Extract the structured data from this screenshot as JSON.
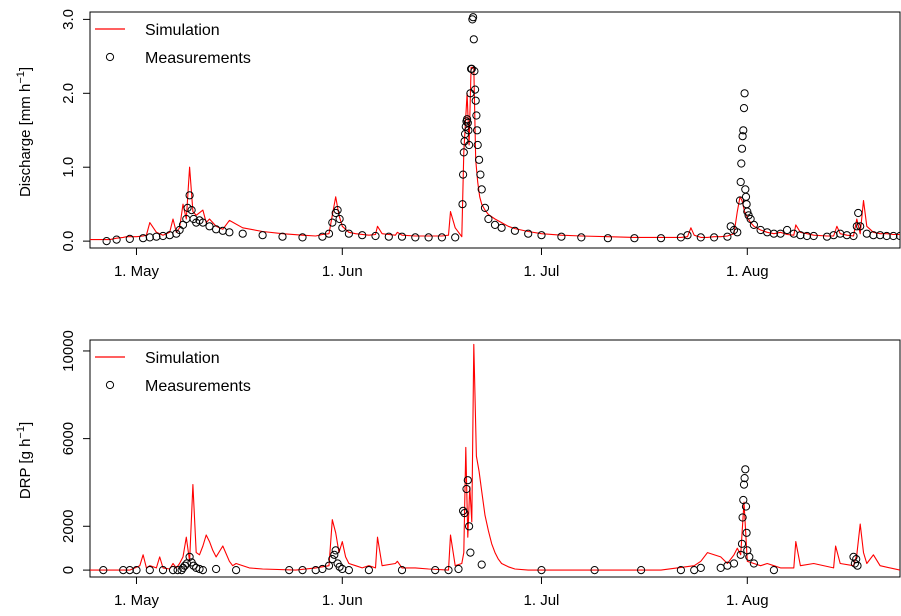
{
  "chart_data": [
    {
      "type": "line",
      "panel": "top",
      "ylabel": "Discharge [mm h",
      "ylabel_sup": "−1",
      "ylabel_tail": "]",
      "ylim": [
        0,
        3.0
      ],
      "xlim": [
        24.0,
        146.0
      ],
      "x_ticks": [
        {
          "x": 31,
          "label": "1. May"
        },
        {
          "x": 62,
          "label": "1. Jun"
        },
        {
          "x": 92,
          "label": "1. Jul"
        },
        {
          "x": 123,
          "label": "1. Aug"
        }
      ],
      "y_ticks": [
        {
          "y": 0.0,
          "label": "0.0"
        },
        {
          "y": 1.0,
          "label": "1.0"
        },
        {
          "y": 2.0,
          "label": "2.0"
        },
        {
          "y": 3.0,
          "label": "3.0"
        }
      ],
      "legend": {
        "position": "top-left",
        "entries": [
          "Simulation",
          "Measurements"
        ]
      },
      "series": [
        {
          "name": "Simulation",
          "kind": "line",
          "color": "#ff0000",
          "x": [
            24.0,
            27.0,
            28.0,
            29.0,
            29.5,
            30.0,
            31.0,
            32.0,
            32.5,
            33.0,
            34.0,
            35.0,
            36.0,
            36.5,
            37.0,
            37.5,
            38.0,
            38.5,
            39.0,
            39.5,
            40.0,
            41.0,
            41.5,
            42.0,
            43.0,
            44.0,
            45.0,
            47.0,
            50.0,
            53.0,
            56.0,
            58.0,
            59.0,
            60.0,
            60.5,
            61.0,
            61.5,
            62.0,
            63.0,
            64.0,
            66.0,
            67.0,
            67.3,
            68.0,
            69.0,
            70.0,
            70.3,
            71.0,
            73.0,
            75.0,
            77.0,
            78.0,
            78.3,
            79.0,
            80.0,
            80.3,
            80.8,
            81.1,
            81.4,
            81.8,
            82.1,
            82.4,
            82.7,
            83.0,
            83.5,
            84.0,
            85.0,
            86.0,
            87.0,
            88.0,
            90.0,
            92.0,
            95.0,
            98.0,
            102.0,
            106.0,
            110.0,
            113.0,
            114.0,
            114.5,
            115.0,
            116.0,
            117.0,
            118.0,
            119.0,
            120.0,
            121.0,
            121.5,
            121.9,
            122.2,
            122.6,
            123.0,
            123.5,
            124.0,
            125.0,
            126.0,
            127.0,
            128.0,
            129.0,
            130.0,
            130.3,
            131.0,
            132.0,
            133.0,
            135.0,
            136.0,
            136.5,
            137.0,
            138.0,
            139.0,
            139.5,
            140.0,
            140.5,
            141.0,
            142.0,
            143.0,
            144.0,
            145.0,
            146.0
          ],
          "y": [
            0.02,
            0.02,
            0.04,
            0.05,
            0.06,
            0.06,
            0.06,
            0.07,
            0.08,
            0.25,
            0.12,
            0.08,
            0.12,
            0.3,
            0.12,
            0.18,
            0.5,
            0.3,
            1.0,
            0.4,
            0.35,
            0.42,
            0.25,
            0.3,
            0.2,
            0.16,
            0.28,
            0.18,
            0.13,
            0.1,
            0.08,
            0.07,
            0.09,
            0.1,
            0.35,
            0.6,
            0.35,
            0.2,
            0.12,
            0.1,
            0.08,
            0.09,
            0.2,
            0.1,
            0.09,
            0.08,
            0.12,
            0.08,
            0.07,
            0.07,
            0.07,
            0.08,
            0.4,
            0.18,
            0.06,
            1.2,
            2.0,
            1.3,
            2.35,
            2.35,
            1.1,
            0.8,
            0.6,
            0.5,
            0.42,
            0.36,
            0.3,
            0.25,
            0.2,
            0.17,
            0.13,
            0.1,
            0.08,
            0.07,
            0.06,
            0.05,
            0.05,
            0.05,
            0.06,
            0.18,
            0.08,
            0.05,
            0.05,
            0.06,
            0.06,
            0.07,
            0.1,
            0.4,
            0.6,
            0.55,
            0.4,
            0.32,
            0.25,
            0.2,
            0.15,
            0.12,
            0.1,
            0.12,
            0.09,
            0.08,
            0.22,
            0.12,
            0.1,
            0.08,
            0.07,
            0.07,
            0.2,
            0.1,
            0.08,
            0.07,
            0.3,
            0.1,
            0.55,
            0.2,
            0.12,
            0.1,
            0.1,
            0.09,
            0.09
          ]
        },
        {
          "name": "Measurements",
          "kind": "points",
          "color": "#000000",
          "x": [
            26.5,
            28.0,
            30.0,
            32.0,
            33.0,
            34.0,
            35.0,
            36.0,
            37.0,
            37.5,
            38.0,
            38.5,
            38.7,
            39.0,
            39.3,
            39.6,
            40.0,
            40.5,
            41.0,
            42.0,
            43.0,
            44.0,
            45.0,
            47.0,
            50.0,
            53.0,
            56.0,
            59.0,
            60.0,
            60.5,
            61.0,
            61.3,
            61.6,
            62.0,
            63.0,
            65.0,
            67.0,
            69.0,
            71.0,
            73.0,
            75.0,
            77.0,
            79.0,
            80.1,
            80.2,
            80.3,
            80.4,
            80.5,
            80.6,
            80.7,
            80.8,
            80.9,
            81.0,
            81.1,
            81.3,
            81.4,
            81.5,
            81.6,
            81.7,
            81.8,
            81.9,
            82.0,
            82.1,
            82.2,
            82.3,
            82.4,
            82.6,
            82.8,
            83.0,
            83.5,
            84.0,
            85.0,
            86.0,
            88.0,
            90.0,
            92.0,
            95.0,
            98.0,
            102.0,
            106.0,
            110.0,
            113.0,
            114.0,
            116.0,
            118.0,
            120.0,
            120.5,
            121.0,
            121.5,
            121.9,
            122.0,
            122.1,
            122.2,
            122.3,
            122.4,
            122.5,
            122.6,
            122.7,
            122.8,
            122.9,
            123.0,
            123.2,
            123.5,
            124.0,
            125.0,
            126.0,
            127.0,
            128.0,
            129.0,
            130.0,
            131.0,
            132.0,
            133.0,
            135.0,
            136.0,
            137.0,
            138.0,
            139.0,
            139.5,
            139.7,
            140.0,
            141.0,
            142.0,
            143.0,
            144.0,
            145.0,
            146.0
          ],
          "y": [
            0.0,
            0.02,
            0.03,
            0.04,
            0.05,
            0.06,
            0.07,
            0.08,
            0.1,
            0.15,
            0.22,
            0.3,
            0.45,
            0.62,
            0.42,
            0.3,
            0.25,
            0.28,
            0.25,
            0.2,
            0.16,
            0.14,
            0.12,
            0.1,
            0.08,
            0.06,
            0.05,
            0.06,
            0.1,
            0.25,
            0.38,
            0.42,
            0.3,
            0.18,
            0.1,
            0.08,
            0.07,
            0.06,
            0.06,
            0.05,
            0.05,
            0.05,
            0.05,
            0.5,
            0.9,
            1.2,
            1.35,
            1.45,
            1.55,
            1.62,
            1.65,
            1.6,
            1.5,
            1.3,
            2.0,
            2.33,
            2.33,
            3.0,
            3.03,
            2.73,
            2.3,
            2.05,
            1.9,
            1.7,
            1.5,
            1.3,
            1.1,
            0.9,
            0.7,
            0.45,
            0.3,
            0.22,
            0.18,
            0.14,
            0.1,
            0.08,
            0.06,
            0.05,
            0.04,
            0.04,
            0.04,
            0.05,
            0.08,
            0.05,
            0.05,
            0.06,
            0.2,
            0.15,
            0.12,
            0.55,
            0.8,
            1.05,
            1.25,
            1.42,
            1.5,
            1.8,
            2.0,
            0.7,
            0.6,
            0.5,
            0.4,
            0.35,
            0.3,
            0.22,
            0.15,
            0.12,
            0.1,
            0.1,
            0.15,
            0.1,
            0.08,
            0.07,
            0.07,
            0.06,
            0.08,
            0.1,
            0.08,
            0.07,
            0.2,
            0.38,
            0.2,
            0.1,
            0.08,
            0.08,
            0.07,
            0.07,
            0.07
          ]
        }
      ]
    },
    {
      "type": "line",
      "panel": "bottom",
      "ylabel": "DRP [g h",
      "ylabel_sup": "−1",
      "ylabel_tail": "]",
      "ylim": [
        0,
        10000
      ],
      "xlim": [
        24.0,
        146.0
      ],
      "x_ticks": [
        {
          "x": 31,
          "label": "1. May"
        },
        {
          "x": 62,
          "label": "1. Jun"
        },
        {
          "x": 92,
          "label": "1. Jul"
        },
        {
          "x": 123,
          "label": "1. Aug"
        }
      ],
      "y_ticks": [
        {
          "y": 0,
          "label": "0"
        },
        {
          "y": 2000,
          "label": "2000"
        },
        {
          "y": 6000,
          "label": "6000"
        },
        {
          "y": 10000,
          "label": "10000"
        }
      ],
      "legend": {
        "position": "top-left",
        "entries": [
          "Simulation",
          "Measurements"
        ]
      },
      "series": [
        {
          "name": "Simulation",
          "kind": "line",
          "color": "#ff0000",
          "x": [
            24.0,
            30.0,
            31.5,
            32.0,
            32.5,
            33.0,
            34.0,
            34.5,
            35.0,
            36.0,
            36.5,
            37.0,
            37.5,
            38.0,
            38.5,
            39.0,
            39.5,
            40.0,
            40.5,
            41.0,
            41.5,
            42.0,
            42.5,
            43.0,
            44.0,
            45.0,
            45.5,
            46.0,
            48.0,
            50.0,
            55.0,
            58.0,
            60.0,
            60.5,
            61.0,
            61.5,
            62.0,
            62.5,
            63.0,
            64.0,
            65.0,
            66.0,
            67.0,
            67.3,
            68.0,
            70.0,
            70.3,
            71.0,
            73.0,
            75.0,
            78.0,
            78.3,
            79.0,
            80.0,
            80.3,
            80.6,
            80.9,
            81.2,
            81.5,
            81.8,
            82.2,
            82.6,
            83.0,
            83.5,
            84.0,
            84.5,
            85.0,
            85.5,
            86.0,
            87.0,
            88.0,
            90.0,
            95.0,
            100.0,
            110.0,
            115.0,
            116.0,
            117.0,
            119.0,
            120.0,
            121.0,
            121.5,
            122.0,
            122.5,
            123.0,
            124.0,
            125.0,
            126.0,
            127.0,
            128.0,
            130.0,
            130.3,
            131.0,
            133.0,
            136.0,
            136.3,
            137.0,
            139.0,
            139.5,
            140.0,
            140.5,
            141.0,
            142.0,
            143.0,
            146.0
          ],
          "y": [
            0,
            0,
            200,
            700,
            100,
            200,
            100,
            600,
            100,
            50,
            300,
            100,
            300,
            600,
            1500,
            400,
            3900,
            800,
            700,
            1100,
            1600,
            1300,
            900,
            600,
            1100,
            400,
            200,
            300,
            100,
            50,
            0,
            100,
            200,
            2300,
            1700,
            800,
            1300,
            600,
            300,
            200,
            100,
            200,
            100,
            1500,
            200,
            300,
            400,
            100,
            100,
            50,
            0,
            1600,
            200,
            300,
            800,
            5600,
            1500,
            3800,
            2200,
            10300,
            5200,
            4500,
            3600,
            2500,
            1800,
            1200,
            800,
            500,
            300,
            150,
            50,
            0,
            0,
            0,
            0,
            200,
            400,
            800,
            600,
            300,
            700,
            1000,
            700,
            3100,
            400,
            300,
            200,
            300,
            200,
            100,
            100,
            1300,
            200,
            300,
            100,
            1100,
            300,
            200,
            700,
            2100,
            800,
            300,
            700,
            200,
            0
          ]
        },
        {
          "name": "Measurements",
          "kind": "points",
          "color": "#000000",
          "x": [
            26.0,
            29.0,
            30.0,
            31.0,
            33.0,
            35.0,
            36.5,
            37.2,
            37.8,
            38.0,
            38.3,
            38.6,
            39.0,
            39.3,
            39.6,
            40.0,
            40.5,
            41.0,
            43.0,
            46.0,
            54.0,
            56.0,
            58.0,
            59.0,
            60.0,
            60.5,
            60.8,
            61.0,
            61.3,
            61.6,
            62.0,
            63.0,
            66.0,
            71.0,
            76.0,
            78.0,
            79.5,
            80.2,
            80.4,
            80.7,
            80.9,
            81.1,
            81.3,
            83.0,
            92.0,
            100.0,
            107.0,
            113.0,
            115.0,
            116.0,
            119.0,
            120.0,
            121.0,
            122.0,
            122.2,
            122.3,
            122.4,
            122.5,
            122.6,
            122.7,
            122.8,
            122.9,
            123.0,
            123.3,
            124.0,
            127.0,
            139.0,
            139.2,
            139.4,
            139.6
          ],
          "y": [
            0,
            0,
            0,
            0,
            0,
            0,
            0,
            0,
            0,
            100,
            200,
            300,
            600,
            350,
            200,
            100,
            50,
            0,
            50,
            0,
            0,
            0,
            0,
            50,
            200,
            500,
            700,
            900,
            300,
            150,
            50,
            0,
            0,
            0,
            0,
            0,
            50,
            2700,
            2600,
            3700,
            4100,
            2000,
            800,
            250,
            0,
            0,
            0,
            0,
            0,
            100,
            100,
            200,
            300,
            700,
            1200,
            2400,
            3200,
            3900,
            4200,
            4600,
            2900,
            1700,
            900,
            600,
            300,
            0,
            600,
            300,
            500,
            200
          ]
        }
      ]
    }
  ]
}
